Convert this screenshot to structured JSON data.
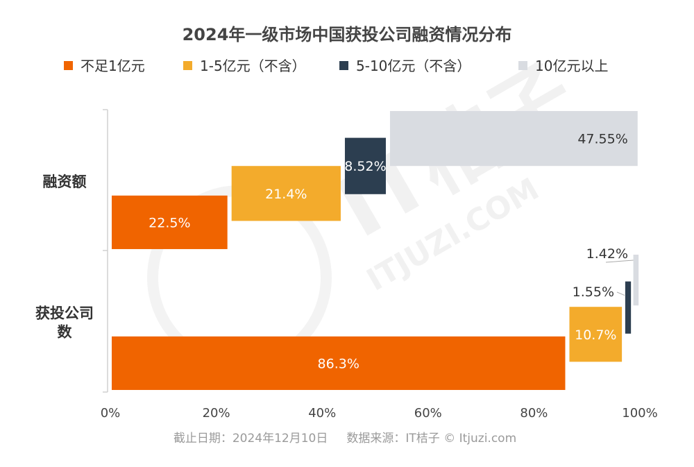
{
  "colors": {
    "background": "#ffffff",
    "series": [
      "#f06400",
      "#f3ab2c",
      "#2c3e50",
      "#d9dce1"
    ],
    "axis": "#d0d0d0",
    "watermark": "#f1f1f1"
  },
  "watermark": {
    "brand": "IT桔子",
    "site": "ITJUZI.COM"
  },
  "chart_data": {
    "type": "bar",
    "orientation": "horizontal",
    "style": "stepped-waterfall",
    "title": "2024年一级市场中国获投公司融资情况分布",
    "legend_position": "top",
    "categories": [
      "融资额",
      "获投公司数"
    ],
    "category_lines": [
      [
        "融资额"
      ],
      [
        "获投公司",
        "数"
      ]
    ],
    "series": [
      {
        "name": "不足1亿元",
        "values": [
          22.5,
          86.3
        ],
        "labels": [
          "22.5%",
          "86.3%"
        ]
      },
      {
        "name": "1-5亿元（不含）",
        "values": [
          21.4,
          10.7
        ],
        "labels": [
          "21.4%",
          "10.7%"
        ]
      },
      {
        "name": "5-10亿元（不含）",
        "values": [
          8.52,
          1.55
        ],
        "labels": [
          "8.52%",
          "1.55%"
        ]
      },
      {
        "name": "10亿元以上",
        "values": [
          47.55,
          1.42
        ],
        "labels": [
          "47.55%",
          "1.42%"
        ]
      }
    ],
    "xlim": [
      0,
      100
    ],
    "xticks": [
      0,
      20,
      40,
      60,
      80,
      100
    ],
    "xtick_labels": [
      "0%",
      "20%",
      "40%",
      "60%",
      "80%",
      "100%"
    ],
    "grid": false
  },
  "footer": {
    "source": "截止日期：2024年12月10日     数据来源：IT桔子 © Itjuzi.com"
  }
}
